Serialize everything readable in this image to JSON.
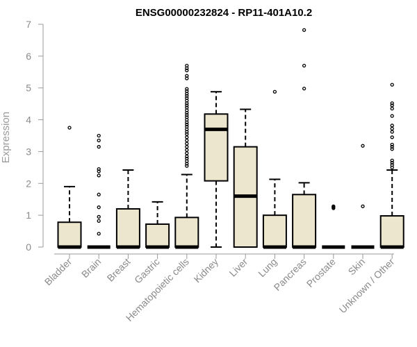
{
  "chart_data": {
    "type": "boxplot",
    "title": "ENSG00000232824 - RP11-401A10.2",
    "xlabel": "",
    "ylabel": "Expression",
    "ylim": [
      0,
      7
    ],
    "yticks": [
      0,
      1,
      2,
      3,
      4,
      5,
      6,
      7
    ],
    "box_fill": "#ede6cf",
    "categories": [
      {
        "name": "Bladder",
        "min": 0,
        "q1": 0,
        "median": 0,
        "q3": 0.78,
        "max": 1.9,
        "outliers": [
          3.75
        ]
      },
      {
        "name": "Brain",
        "min": 0,
        "q1": 0,
        "median": 0,
        "q3": 0,
        "max": 0,
        "outliers": [
          0.42,
          0.82,
          0.95,
          1.25,
          1.65,
          2.25,
          2.38,
          2.45,
          3.15,
          3.35,
          3.5
        ]
      },
      {
        "name": "Breast",
        "min": 0,
        "q1": 0,
        "median": 0,
        "q3": 1.2,
        "max": 2.42,
        "outliers": []
      },
      {
        "name": "Gastric",
        "min": 0,
        "q1": 0,
        "median": 0,
        "q3": 0.72,
        "max": 1.42,
        "outliers": []
      },
      {
        "name": "Hematopoietic cells",
        "min": 0,
        "q1": 0,
        "median": 0,
        "q3": 0.93,
        "max": 2.28,
        "outliers": [
          2.55,
          2.62,
          2.7,
          2.78,
          2.85,
          2.95,
          3.05,
          3.15,
          3.25,
          3.35,
          3.45,
          3.55,
          3.62,
          3.7,
          3.78,
          3.85,
          3.92,
          4.0,
          4.08,
          4.15,
          4.22,
          4.3,
          4.38,
          4.45,
          4.52,
          4.6,
          4.68,
          4.75,
          4.82,
          4.9,
          4.97,
          5.3,
          5.38,
          5.55,
          5.62,
          5.7
        ]
      },
      {
        "name": "Kidney",
        "min": 0,
        "q1": 2.08,
        "median": 3.7,
        "q3": 4.18,
        "max": 4.88,
        "outliers": []
      },
      {
        "name": "Liver",
        "min": 0,
        "q1": 0,
        "median": 1.6,
        "q3": 3.15,
        "max": 4.33,
        "outliers": []
      },
      {
        "name": "Lung",
        "min": 0,
        "q1": 0,
        "median": 0,
        "q3": 1.0,
        "max": 2.13,
        "outliers": [
          4.88
        ]
      },
      {
        "name": "Pancreas",
        "min": 0,
        "q1": 0,
        "median": 0,
        "q3": 1.65,
        "max": 2.02,
        "outliers": [
          4.98,
          5.7,
          6.82
        ]
      },
      {
        "name": "Prostate",
        "min": 0,
        "q1": 0,
        "median": 0,
        "q3": 0,
        "max": 0,
        "outliers": [
          1.22,
          1.25,
          1.28
        ]
      },
      {
        "name": "Skin",
        "min": 0,
        "q1": 0,
        "median": 0,
        "q3": 0,
        "max": 0,
        "outliers": [
          1.28,
          3.18
        ]
      },
      {
        "name": "Unknown / Other",
        "min": 0,
        "q1": 0,
        "median": 0,
        "q3": 0.98,
        "max": 2.42,
        "outliers": [
          2.5,
          2.58,
          2.65,
          2.72,
          3.08,
          3.15,
          3.22,
          3.45,
          3.62,
          3.72,
          3.82,
          4.12,
          4.35,
          4.45,
          4.52,
          5.1
        ]
      }
    ]
  }
}
